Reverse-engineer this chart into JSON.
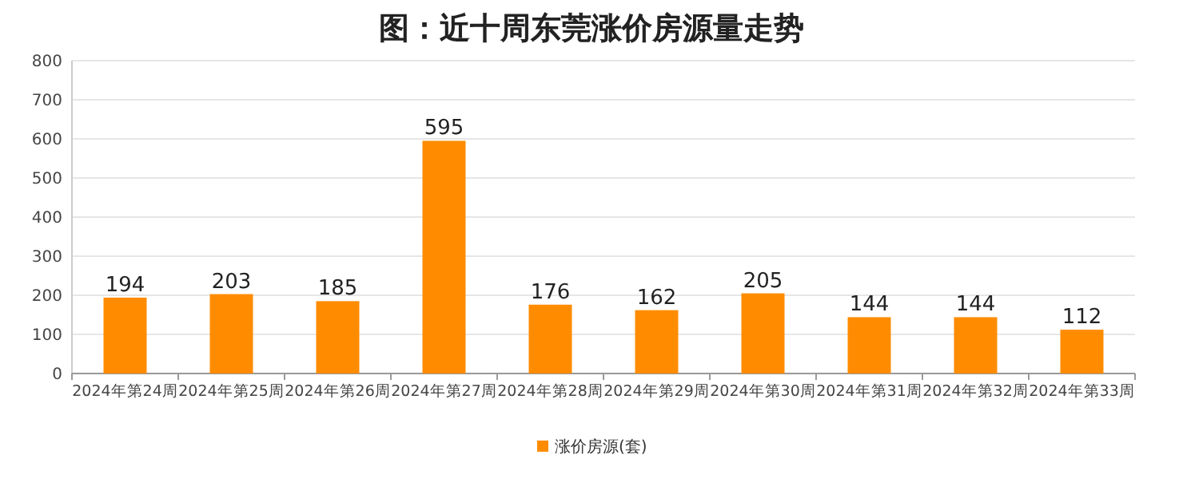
{
  "chart_data": {
    "type": "bar",
    "title": "图：近十周东莞涨价房源量走势",
    "categories": [
      "2024年第24周",
      "2024年第25周",
      "2024年第26周",
      "2024年第27周",
      "2024年第28周",
      "2024年第29周",
      "2024年第30周",
      "2024年第31周",
      "2024年第32周",
      "2024年第33周"
    ],
    "series": [
      {
        "name": "涨价房源(套)",
        "color": "#ff8c00",
        "values": [
          194,
          203,
          185,
          595,
          176,
          162,
          205,
          144,
          144,
          112
        ]
      }
    ],
    "ylim": [
      0,
      800
    ],
    "yticks": [
      0,
      100,
      200,
      300,
      400,
      500,
      600,
      700,
      800
    ],
    "grid": "y",
    "legend": "bottom",
    "data_labels": true
  }
}
